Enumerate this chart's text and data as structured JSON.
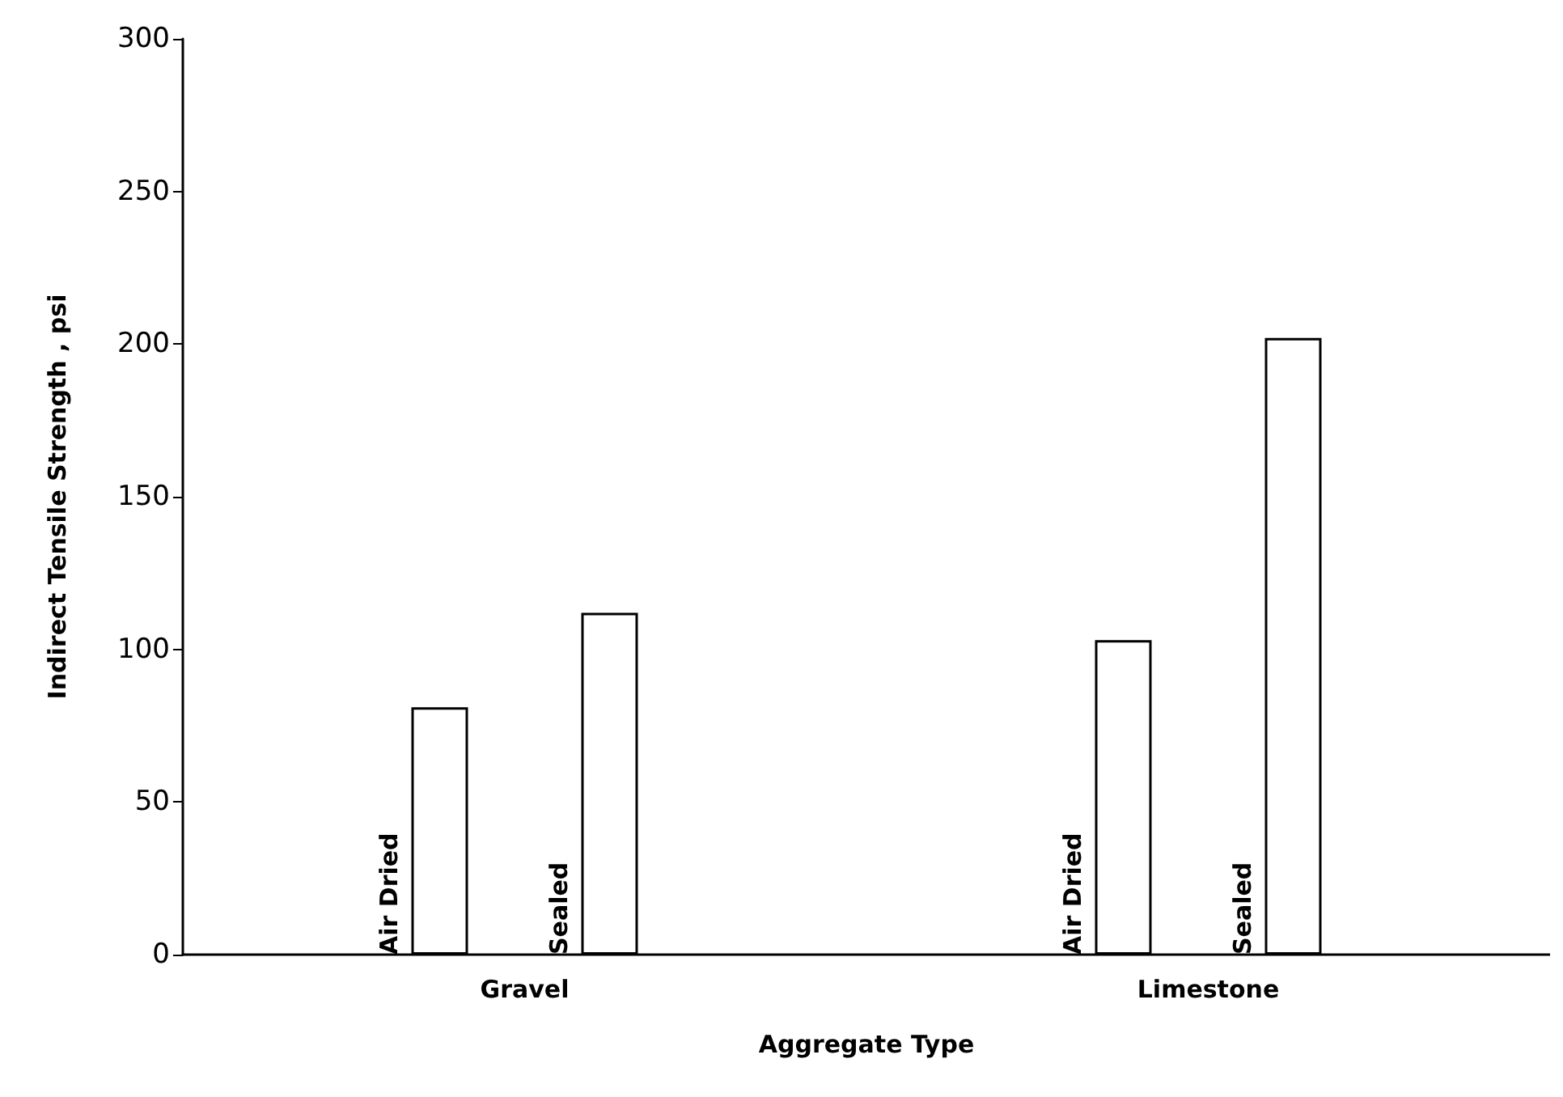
{
  "chart_data": {
    "type": "bar",
    "xlabel": "Aggregate Type",
    "ylabel": "Indirect Tensile Strength , psi",
    "categories": [
      "Gravel",
      "Limestone"
    ],
    "series": [
      {
        "name": "Air Dried",
        "color": "#ffffff",
        "values": [
          81,
          103
        ]
      },
      {
        "name": "Sealed",
        "color": "#ffffff",
        "values": [
          112,
          202
        ]
      }
    ],
    "ylim": [
      0,
      300
    ],
    "yticks": [
      0,
      50,
      100,
      150,
      200,
      250,
      300
    ],
    "grid": false,
    "legend": false
  }
}
